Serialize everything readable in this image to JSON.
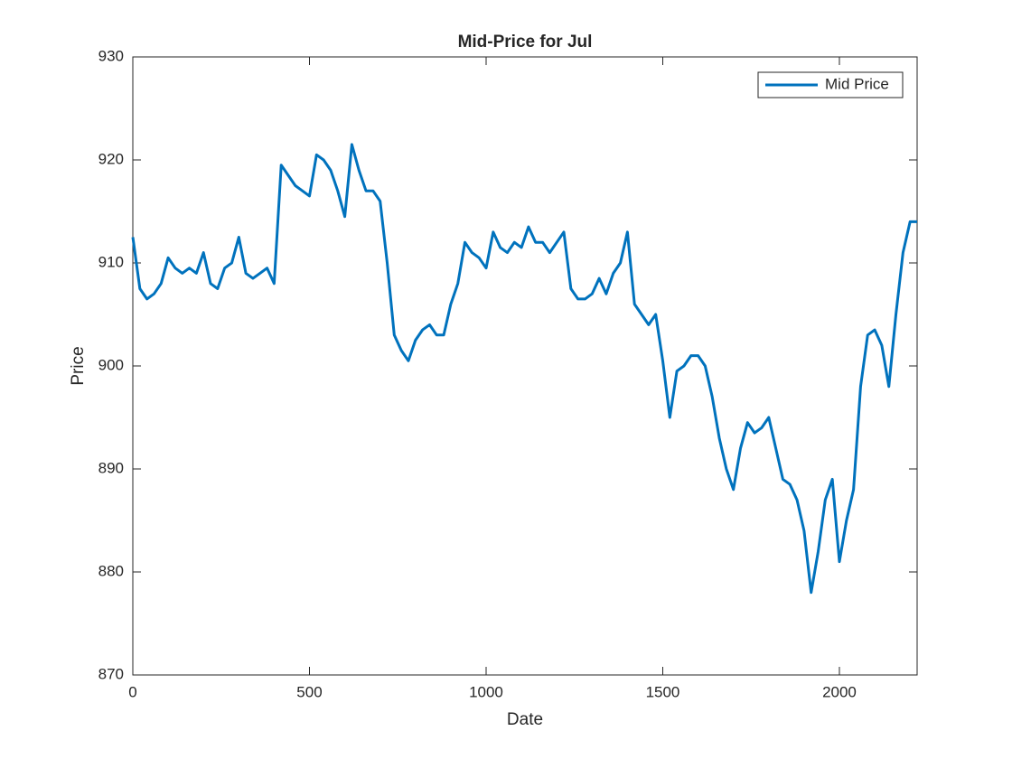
{
  "chart_data": {
    "type": "line",
    "title": "Mid-Price for Jul",
    "x_label": "Date",
    "y_label": "Price",
    "x": [
      0,
      20,
      40,
      60,
      80,
      100,
      120,
      140,
      160,
      180,
      200,
      220,
      240,
      260,
      280,
      300,
      320,
      340,
      360,
      380,
      400,
      420,
      440,
      460,
      480,
      500,
      520,
      540,
      560,
      580,
      600,
      620,
      640,
      660,
      680,
      700,
      720,
      740,
      760,
      780,
      800,
      820,
      840,
      860,
      880,
      900,
      920,
      940,
      960,
      980,
      1000,
      1020,
      1040,
      1060,
      1080,
      1100,
      1120,
      1140,
      1160,
      1180,
      1200,
      1220,
      1240,
      1260,
      1280,
      1300,
      1320,
      1340,
      1360,
      1380,
      1400,
      1420,
      1440,
      1460,
      1480,
      1500,
      1520,
      1540,
      1560,
      1580,
      1600,
      1620,
      1640,
      1660,
      1680,
      1700,
      1720,
      1740,
      1760,
      1780,
      1800,
      1820,
      1840,
      1860,
      1880,
      1900,
      1920,
      1940,
      1960,
      1980,
      2000,
      2020,
      2040,
      2060,
      2080,
      2100,
      2120,
      2140,
      2160,
      2180,
      2200,
      2220
    ],
    "series": [
      {
        "name": "Mid Price",
        "color": "#0072BD",
        "values": [
          912.5,
          907.5,
          906.5,
          907,
          908,
          910.5,
          909.5,
          909,
          909.5,
          909,
          911,
          908,
          907.5,
          909.5,
          910,
          912.5,
          909,
          908.5,
          909,
          909.5,
          908,
          919.5,
          918.5,
          917.5,
          917,
          916.5,
          920.5,
          920,
          919,
          917,
          914.5,
          921.5,
          919,
          917,
          917,
          916,
          910,
          903,
          901.5,
          900.5,
          902.5,
          903.5,
          904,
          903,
          903,
          906,
          908,
          912,
          911,
          910.5,
          909.5,
          913,
          911.5,
          911,
          912,
          911.5,
          913.5,
          912,
          912,
          911,
          912,
          913,
          907.5,
          906.5,
          906.5,
          907,
          908.5,
          907,
          909,
          910,
          913,
          906,
          905,
          904,
          905,
          900.5,
          895,
          899.5,
          900,
          901,
          901,
          900,
          897,
          893,
          890,
          888,
          892,
          894.5,
          893.5,
          894,
          895,
          892,
          889,
          888.5,
          887,
          884,
          878,
          882,
          887,
          889,
          881,
          885,
          888,
          898,
          903,
          903.5,
          902,
          898,
          905,
          911,
          914,
          914
        ]
      }
    ],
    "xlim": [
      0,
      2220
    ],
    "ylim": [
      870,
      930
    ],
    "xticks": [
      0,
      500,
      1000,
      1500,
      2000
    ],
    "yticks": [
      870,
      880,
      890,
      900,
      910,
      920,
      930
    ],
    "legend": "upper right"
  }
}
